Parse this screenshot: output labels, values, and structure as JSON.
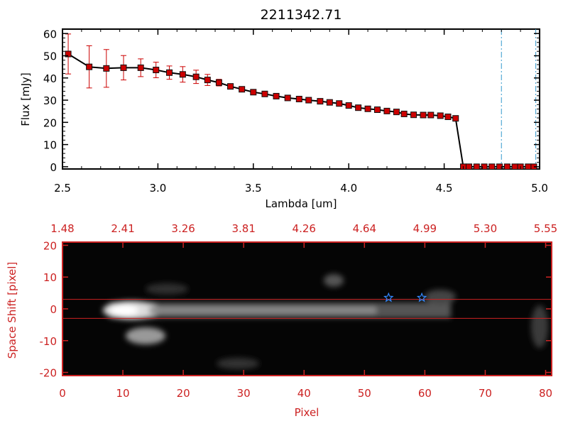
{
  "colors": {
    "text": "#000000",
    "accent": "#cc2222",
    "marker": "#cc0000",
    "guide": "#3399cc",
    "star": "#3388ff"
  },
  "chart_data": [
    {
      "type": "line",
      "title": "2211342.71",
      "xlabel": "Lambda [um]",
      "ylabel": "Flux [mJy]",
      "xlim": [
        2.5,
        5.0
      ],
      "ylim": [
        -1,
        62
      ],
      "xticks": [
        "2.5",
        "3.0",
        "3.5",
        "4.0",
        "4.5",
        "5.0"
      ],
      "yticks": [
        "0",
        "10",
        "20",
        "30",
        "40",
        "50",
        "60"
      ],
      "grid": false,
      "vlines": [
        4.8,
        4.98
      ],
      "series": [
        {
          "x": [
            2.53,
            2.64,
            2.73,
            2.82,
            2.91,
            2.99,
            3.06,
            3.13,
            3.2,
            3.26,
            3.32,
            3.38,
            3.44,
            3.5,
            3.56,
            3.62,
            3.68,
            3.74,
            3.79,
            3.85,
            3.9,
            3.95,
            4.0,
            4.05,
            4.1,
            4.15,
            4.2,
            4.25,
            4.29,
            4.34,
            4.39,
            4.43,
            4.48,
            4.52,
            4.56,
            4.6,
            4.63,
            4.67,
            4.71,
            4.75,
            4.79,
            4.83,
            4.87,
            4.9,
            4.94,
            4.97
          ],
          "y": [
            50.8,
            45.0,
            44.3,
            44.6,
            44.6,
            43.6,
            42.4,
            41.6,
            40.5,
            39.1,
            37.9,
            36.2,
            34.9,
            33.6,
            32.8,
            31.8,
            31.0,
            30.5,
            30.0,
            29.5,
            29.0,
            28.5,
            27.6,
            26.6,
            26.1,
            25.7,
            25.1,
            24.7,
            23.8,
            23.4,
            23.3,
            23.3,
            23.0,
            22.5,
            21.8,
            0.0,
            0.0,
            0.0,
            0.0,
            0.0,
            0.0,
            0.0,
            0.0,
            0.0,
            0.0,
            0.0
          ],
          "yerr": [
            9.0,
            9.5,
            8.5,
            5.5,
            4.0,
            3.5,
            3.0,
            3.5,
            3.0,
            2.5,
            1.5,
            1.0,
            0.5,
            0.5,
            0.5,
            0.5,
            0.5,
            0.5,
            0.5,
            0.5,
            0.5,
            0.5,
            0.5,
            0.5,
            0.5,
            0.5,
            0.5,
            0.5,
            0.5,
            0.5,
            0.5,
            0.5,
            0.5,
            0.5,
            0.5,
            0.5,
            0.5,
            0.5,
            0.5,
            0.5,
            0.5,
            0.5,
            0.5,
            0.5,
            0.5,
            0.5
          ]
        }
      ]
    },
    {
      "type": "heatmap",
      "xlabel": "Pixel",
      "ylabel": "Space Shift [pixel]",
      "xlim": [
        0,
        81
      ],
      "ylim": [
        -21,
        21
      ],
      "xticks": [
        "0",
        "10",
        "20",
        "30",
        "40",
        "50",
        "60",
        "70",
        "80"
      ],
      "yticks": [
        "-20",
        "-10",
        "0",
        "10",
        "20"
      ],
      "top_ticks": [
        "1.48",
        "2.41",
        "3.26",
        "3.81",
        "4.26",
        "4.64",
        "4.99",
        "5.30",
        "5.55"
      ],
      "hlines": [
        3,
        -3
      ],
      "stars": [
        [
          54,
          3.5
        ],
        [
          59.5,
          3.5
        ]
      ]
    }
  ]
}
